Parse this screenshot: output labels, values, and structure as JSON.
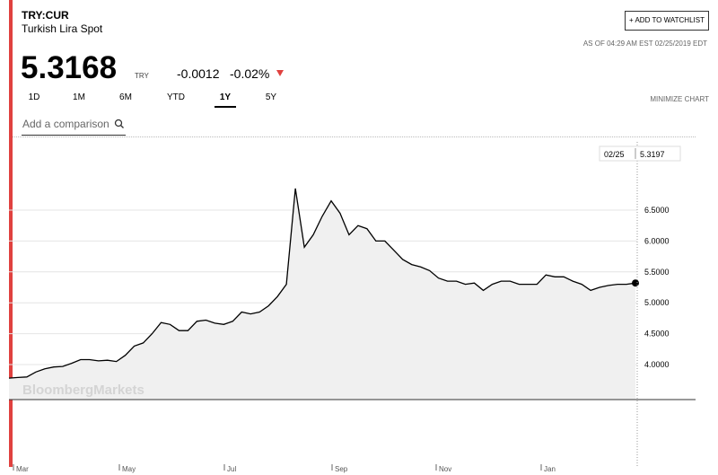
{
  "header": {
    "ticker": "TRY:CUR",
    "name": "Turkish Lira Spot",
    "watchlist_button": "+ ADD TO WATCHLIST",
    "as_of": "AS OF 04:29 AM EST 02/25/2019 EDT",
    "price": "5.3168",
    "currency": "TRY",
    "change": "-0.0012",
    "change_pct": "-0.02%"
  },
  "ranges": [
    "1D",
    "1M",
    "6M",
    "YTD",
    "1Y",
    "5Y"
  ],
  "selected_range": "1Y",
  "minimize": "MINIMIZE CHART",
  "compare_placeholder": "Add a comparison",
  "chart_data": {
    "type": "line",
    "color": "#000000",
    "values": [
      3.78,
      3.79,
      3.8,
      3.88,
      3.93,
      3.96,
      3.97,
      4.02,
      4.08,
      4.08,
      4.06,
      4.07,
      4.05,
      4.15,
      4.3,
      4.35,
      4.5,
      4.68,
      4.65,
      4.55,
      4.55,
      4.7,
      4.72,
      4.67,
      4.65,
      4.7,
      4.85,
      4.82,
      4.85,
      4.95,
      5.1,
      5.3,
      6.85,
      5.9,
      6.1,
      6.4,
      6.65,
      6.45,
      6.1,
      6.25,
      6.2,
      6.0,
      6.0,
      5.85,
      5.7,
      5.62,
      5.58,
      5.52,
      5.4,
      5.35,
      5.35,
      5.3,
      5.32,
      5.2,
      5.3,
      5.35,
      5.35,
      5.3,
      5.3,
      5.3,
      5.45,
      5.42,
      5.42,
      5.35,
      5.3,
      5.2,
      5.25,
      5.28,
      5.3,
      5.3,
      5.32
    ],
    "ylim": [
      3.433,
      7.605
    ],
    "yticks": [
      {
        "value": 4,
        "label": "4.0000"
      },
      {
        "value": 4.5,
        "label": "4.5000"
      },
      {
        "value": 5,
        "label": "5.0000"
      },
      {
        "value": 5.5,
        "label": "5.5000"
      },
      {
        "value": 6,
        "label": "6.0000"
      },
      {
        "value": 6.5,
        "label": "6.5000"
      }
    ],
    "grid": true,
    "last_date": "02/25",
    "last_value": "5.3197",
    "xtick_labels": [
      "Mar",
      "May",
      "Jul",
      "Sep",
      "Nov",
      "Jan"
    ],
    "watermark": "BloombergMarkets"
  }
}
